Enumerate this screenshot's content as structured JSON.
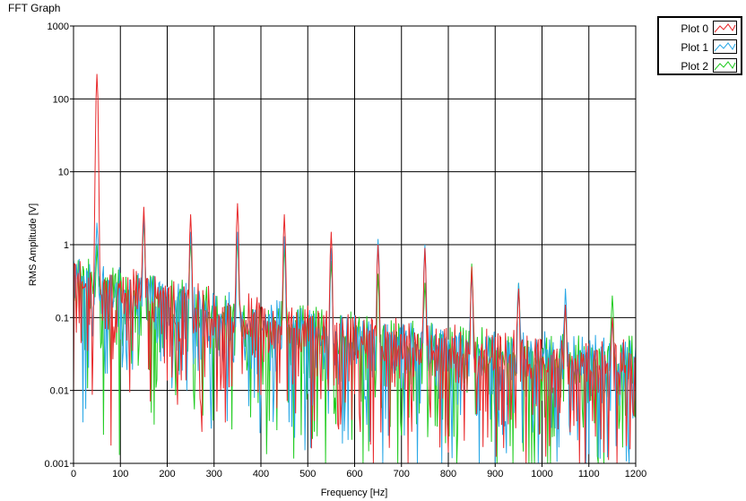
{
  "title": "FFT Graph",
  "chart_data": {
    "type": "line",
    "title": "FFT Graph",
    "xlabel": "Frequency [Hz]",
    "ylabel": "RMS Amplitude [V]",
    "xlim": [
      0,
      1200
    ],
    "ylim": [
      0.001,
      1000
    ],
    "yscale": "log",
    "grid": true,
    "legend_position": "top-right (outside plot)",
    "x_ticks": [
      "0",
      "100",
      "200",
      "300",
      "400",
      "500",
      "600",
      "700",
      "800",
      "900",
      "1000",
      "1100",
      "1200"
    ],
    "y_ticks": [
      "0.001",
      "0.01",
      "0.1",
      "1",
      "10",
      "100",
      "1000"
    ],
    "series": [
      {
        "name": "Plot 0",
        "color": "#e8282a",
        "peaks": [
          [
            50,
            220
          ],
          [
            150,
            3.3
          ],
          [
            250,
            2.6
          ],
          [
            350,
            3.7
          ],
          [
            450,
            2.6
          ],
          [
            550,
            1.5
          ],
          [
            650,
            1.0
          ],
          [
            750,
            0.9
          ],
          [
            850,
            0.5
          ],
          [
            950,
            0.25
          ],
          [
            1050,
            0.15
          ],
          [
            1150,
            0.1
          ]
        ]
      },
      {
        "name": "Plot 1",
        "color": "#2aa8e6",
        "peaks": [
          [
            50,
            2.0
          ],
          [
            150,
            2.5
          ],
          [
            250,
            1.5
          ],
          [
            350,
            1.5
          ],
          [
            450,
            1.3
          ],
          [
            550,
            0.9
          ],
          [
            650,
            1.2
          ],
          [
            750,
            1.0
          ],
          [
            850,
            0.4
          ],
          [
            950,
            0.3
          ],
          [
            1050,
            0.25
          ],
          [
            1150,
            0.1
          ]
        ]
      },
      {
        "name": "Plot 2",
        "color": "#22cc22",
        "peaks": [
          [
            50,
            1.0
          ],
          [
            150,
            2.2
          ],
          [
            250,
            1.2
          ],
          [
            350,
            1.2
          ],
          [
            450,
            1.0
          ],
          [
            550,
            0.6
          ],
          [
            650,
            0.4
          ],
          [
            750,
            0.3
          ],
          [
            850,
            0.55
          ],
          [
            950,
            0.3
          ],
          [
            1050,
            0.15
          ],
          [
            1150,
            0.2
          ]
        ]
      }
    ]
  }
}
